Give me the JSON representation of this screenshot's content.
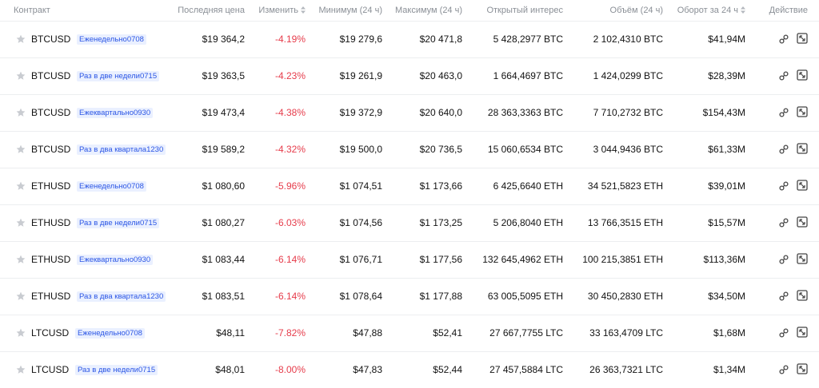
{
  "header": {
    "contract": "Контракт",
    "last_price": "Последняя цена",
    "change": "Изменить",
    "low": "Минимум (24 ч)",
    "high": "Максимум (24 ч)",
    "open_interest": "Открытый интерес",
    "volume": "Объём (24 ч)",
    "turnover": "Оборот за 24 ч",
    "action": "Действие"
  },
  "colors": {
    "negative": "#e63c4b",
    "tag_text": "#2a55e5",
    "tag_bg": "#eaf0ff"
  },
  "icons": {
    "favorite": "star-icon",
    "sort": "sort-arrows-icon",
    "link": "link-icon",
    "expand": "expand-icon"
  },
  "rows": [
    {
      "symbol": "BTCUSD",
      "tag": "Еженедельно0708",
      "last": "$19 364,2",
      "change": "-4.19%",
      "low": "$19 279,6",
      "high": "$20 471,8",
      "oi": "5 428,2977 BTC",
      "vol": "2 102,4310 BTC",
      "turnover": "$41,94M"
    },
    {
      "symbol": "BTCUSD",
      "tag": "Раз в две недели0715",
      "last": "$19 363,5",
      "change": "-4.23%",
      "low": "$19 261,9",
      "high": "$20 463,0",
      "oi": "1 664,4697 BTC",
      "vol": "1 424,0299 BTC",
      "turnover": "$28,39M"
    },
    {
      "symbol": "BTCUSD",
      "tag": "Ежеквартально0930",
      "last": "$19 473,4",
      "change": "-4.38%",
      "low": "$19 372,9",
      "high": "$20 640,0",
      "oi": "28 363,3363 BTC",
      "vol": "7 710,2732 BTC",
      "turnover": "$154,43M"
    },
    {
      "symbol": "BTCUSD",
      "tag": "Раз в два квартала1230",
      "last": "$19 589,2",
      "change": "-4.32%",
      "low": "$19 500,0",
      "high": "$20 736,5",
      "oi": "15 060,6534 BTC",
      "vol": "3 044,9436 BTC",
      "turnover": "$61,33M"
    },
    {
      "symbol": "ETHUSD",
      "tag": "Еженедельно0708",
      "last": "$1 080,60",
      "change": "-5.96%",
      "low": "$1 074,51",
      "high": "$1 173,66",
      "oi": "6 425,6640 ETH",
      "vol": "34 521,5823 ETH",
      "turnover": "$39,01M"
    },
    {
      "symbol": "ETHUSD",
      "tag": "Раз в две недели0715",
      "last": "$1 080,27",
      "change": "-6.03%",
      "low": "$1 074,56",
      "high": "$1 173,25",
      "oi": "5 206,8040 ETH",
      "vol": "13 766,3515 ETH",
      "turnover": "$15,57M"
    },
    {
      "symbol": "ETHUSD",
      "tag": "Ежеквартально0930",
      "last": "$1 083,44",
      "change": "-6.14%",
      "low": "$1 076,71",
      "high": "$1 177,56",
      "oi": "132 645,4962 ETH",
      "vol": "100 215,3851 ETH",
      "turnover": "$113,36M"
    },
    {
      "symbol": "ETHUSD",
      "tag": "Раз в два квартала1230",
      "last": "$1 083,51",
      "change": "-6.14%",
      "low": "$1 078,64",
      "high": "$1 177,88",
      "oi": "63 005,5095 ETH",
      "vol": "30 450,2830 ETH",
      "turnover": "$34,50M"
    },
    {
      "symbol": "LTCUSD",
      "tag": "Еженедельно0708",
      "last": "$48,11",
      "change": "-7.82%",
      "low": "$47,88",
      "high": "$52,41",
      "oi": "27 667,7755 LTC",
      "vol": "33 163,4709 LTC",
      "turnover": "$1,68M"
    },
    {
      "symbol": "LTCUSD",
      "tag": "Раз в две недели0715",
      "last": "$48,01",
      "change": "-8.00%",
      "low": "$47,83",
      "high": "$52,44",
      "oi": "27 457,5884 LTC",
      "vol": "26 363,7321 LTC",
      "turnover": "$1,34M"
    }
  ]
}
